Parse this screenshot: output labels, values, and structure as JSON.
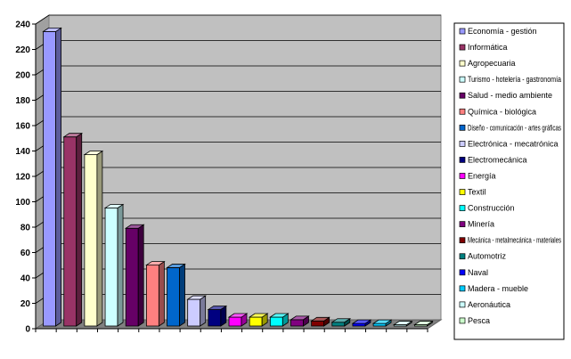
{
  "chart_data": {
    "type": "bar",
    "style": "3d-column",
    "ylim": [
      0,
      240
    ],
    "yticks": [
      0,
      20,
      40,
      60,
      80,
      100,
      120,
      140,
      160,
      180,
      200,
      220,
      240
    ],
    "grid": true,
    "legend_position": "right",
    "plot_background": "#c0c0c0",
    "series": [
      {
        "name": "Economía - gestión",
        "value": 232,
        "color": "#9999ff"
      },
      {
        "name": "Informática",
        "value": 149,
        "color": "#993366"
      },
      {
        "name": "Agropecuaria",
        "value": 135,
        "color": "#ffffcc"
      },
      {
        "name": "Turismo - hotelería - gastronomía",
        "value": 93,
        "color": "#ccffff"
      },
      {
        "name": "Salud - medio ambiente",
        "value": 77,
        "color": "#660066"
      },
      {
        "name": "Química - biológica",
        "value": 48,
        "color": "#ff8080"
      },
      {
        "name": "Diseño - comunicación - artes gráficas",
        "value": 46,
        "color": "#0066cc"
      },
      {
        "name": "Electrónica - mecatrónica",
        "value": 21,
        "color": "#ccccff"
      },
      {
        "name": "Electromecánica",
        "value": 13,
        "color": "#000080"
      },
      {
        "name": "Energía",
        "value": 7,
        "color": "#ff00ff"
      },
      {
        "name": "Textil",
        "value": 7,
        "color": "#ffff00"
      },
      {
        "name": "Construcción",
        "value": 7,
        "color": "#00ffff"
      },
      {
        "name": "Minería",
        "value": 5,
        "color": "#800080"
      },
      {
        "name": "Mecánica - metalmecánica - materiales",
        "value": 4,
        "color": "#800000"
      },
      {
        "name": "Automotriz",
        "value": 3,
        "color": "#008080"
      },
      {
        "name": "Naval",
        "value": 2,
        "color": "#0000ff"
      },
      {
        "name": "Madera - mueble",
        "value": 2,
        "color": "#00ccff"
      },
      {
        "name": "Aeronáutica",
        "value": 1,
        "color": "#ccffff"
      },
      {
        "name": "Pesca",
        "value": 1,
        "color": "#ccffcc"
      }
    ]
  }
}
